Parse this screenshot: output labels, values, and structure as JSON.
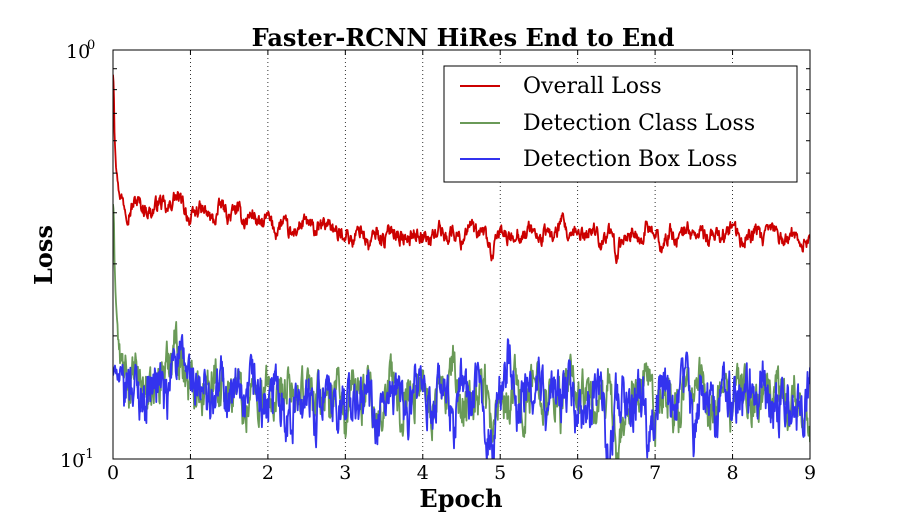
{
  "chart_data": {
    "type": "line",
    "title": "Faster-RCNN HiRes End to End",
    "xlabel": "Epoch",
    "ylabel": "Loss",
    "xlim": [
      0,
      9
    ],
    "ylim": [
      0.1,
      1.0
    ],
    "yscale": "log",
    "grid": "x-only dotted",
    "legend_position": "top-right",
    "x_ticks": [
      "0",
      "1",
      "2",
      "3",
      "4",
      "5",
      "6",
      "7",
      "8",
      "9"
    ],
    "y_ticks": [
      {
        "value": 1.0,
        "base": "10",
        "exp": "0"
      },
      {
        "value": 0.1,
        "base": "10",
        "exp": "-1"
      }
    ],
    "series": [
      {
        "name": "Overall Loss",
        "color": "#cc0000",
        "x": [
          0.0,
          0.01,
          0.02,
          0.04,
          0.07,
          0.1,
          0.15,
          0.2,
          0.3,
          0.4,
          0.5,
          0.6,
          0.7,
          0.8,
          0.9,
          1.0,
          1.1,
          1.2,
          1.3,
          1.4,
          1.5,
          1.6,
          1.7,
          1.8,
          1.9,
          2.0,
          2.1,
          2.2,
          2.3,
          2.4,
          2.5,
          2.6,
          2.7,
          2.8,
          2.9,
          3.0,
          3.1,
          3.2,
          3.3,
          3.4,
          3.5,
          3.6,
          3.7,
          3.8,
          3.9,
          4.0,
          4.1,
          4.2,
          4.3,
          4.4,
          4.5,
          4.6,
          4.7,
          4.8,
          4.9,
          5.0,
          5.1,
          5.2,
          5.3,
          5.4,
          5.5,
          5.6,
          5.7,
          5.8,
          5.9,
          6.0,
          6.1,
          6.2,
          6.3,
          6.4,
          6.5,
          6.6,
          6.7,
          6.8,
          6.9,
          7.0,
          7.1,
          7.2,
          7.3,
          7.4,
          7.5,
          7.6,
          7.7,
          7.8,
          7.9,
          8.0,
          8.1,
          8.2,
          8.3,
          8.4,
          8.5,
          8.6,
          8.7,
          8.8,
          8.9,
          9.0
        ],
        "values": [
          0.87,
          0.82,
          0.62,
          0.52,
          0.46,
          0.44,
          0.42,
          0.4,
          0.43,
          0.41,
          0.4,
          0.43,
          0.4,
          0.44,
          0.42,
          0.38,
          0.41,
          0.4,
          0.38,
          0.42,
          0.39,
          0.41,
          0.38,
          0.4,
          0.37,
          0.39,
          0.36,
          0.38,
          0.35,
          0.37,
          0.38,
          0.36,
          0.37,
          0.38,
          0.35,
          0.36,
          0.34,
          0.37,
          0.33,
          0.36,
          0.34,
          0.37,
          0.35,
          0.34,
          0.36,
          0.35,
          0.34,
          0.37,
          0.35,
          0.36,
          0.34,
          0.38,
          0.35,
          0.36,
          0.31,
          0.37,
          0.34,
          0.36,
          0.35,
          0.37,
          0.34,
          0.36,
          0.35,
          0.38,
          0.34,
          0.36,
          0.35,
          0.37,
          0.34,
          0.36,
          0.32,
          0.35,
          0.36,
          0.34,
          0.37,
          0.35,
          0.33,
          0.36,
          0.34,
          0.37,
          0.35,
          0.36,
          0.34,
          0.36,
          0.35,
          0.37,
          0.34,
          0.35,
          0.36,
          0.34,
          0.37,
          0.35,
          0.34,
          0.36,
          0.33,
          0.35
        ],
        "noise": 0.035
      },
      {
        "name": "Detection Class Loss",
        "color": "#6a9a58",
        "x": [
          0.0,
          0.01,
          0.02,
          0.04,
          0.07,
          0.1,
          0.15,
          0.2,
          0.3,
          0.4,
          0.5,
          0.6,
          0.7,
          0.8,
          0.9,
          1.0,
          1.1,
          1.2,
          1.3,
          1.4,
          1.5,
          1.6,
          1.7,
          1.8,
          1.9,
          2.0,
          2.1,
          2.2,
          2.3,
          2.4,
          2.5,
          2.6,
          2.7,
          2.8,
          2.9,
          3.0,
          3.1,
          3.2,
          3.3,
          3.4,
          3.5,
          3.6,
          3.7,
          3.8,
          3.9,
          4.0,
          4.1,
          4.2,
          4.3,
          4.4,
          4.5,
          4.6,
          4.7,
          4.8,
          4.9,
          5.0,
          5.1,
          5.2,
          5.3,
          5.4,
          5.5,
          5.6,
          5.7,
          5.8,
          5.9,
          6.0,
          6.1,
          6.2,
          6.3,
          6.4,
          6.5,
          6.6,
          6.7,
          6.8,
          6.9,
          7.0,
          7.1,
          7.2,
          7.3,
          7.4,
          7.5,
          7.6,
          7.7,
          7.8,
          7.9,
          8.0,
          8.1,
          8.2,
          8.3,
          8.4,
          8.5,
          8.6,
          8.7,
          8.8,
          8.9,
          9.0
        ],
        "values": [
          0.42,
          0.4,
          0.3,
          0.24,
          0.19,
          0.17,
          0.16,
          0.15,
          0.16,
          0.15,
          0.14,
          0.16,
          0.17,
          0.2,
          0.17,
          0.15,
          0.16,
          0.14,
          0.17,
          0.15,
          0.14,
          0.16,
          0.13,
          0.15,
          0.14,
          0.15,
          0.13,
          0.14,
          0.15,
          0.13,
          0.16,
          0.14,
          0.15,
          0.13,
          0.16,
          0.12,
          0.15,
          0.14,
          0.16,
          0.12,
          0.14,
          0.16,
          0.13,
          0.15,
          0.14,
          0.16,
          0.13,
          0.15,
          0.14,
          0.17,
          0.13,
          0.15,
          0.14,
          0.16,
          0.11,
          0.15,
          0.14,
          0.16,
          0.13,
          0.15,
          0.16,
          0.14,
          0.15,
          0.13,
          0.16,
          0.14,
          0.15,
          0.13,
          0.14,
          0.16,
          0.1,
          0.13,
          0.15,
          0.14,
          0.16,
          0.12,
          0.15,
          0.14,
          0.13,
          0.15,
          0.14,
          0.16,
          0.13,
          0.14,
          0.15,
          0.13,
          0.16,
          0.14,
          0.13,
          0.15,
          0.14,
          0.16,
          0.13,
          0.15,
          0.13,
          0.12
        ],
        "noise": 0.1
      },
      {
        "name": "Detection Box Loss",
        "color": "#3333ee",
        "x": [
          0.0,
          0.05,
          0.1,
          0.15,
          0.2,
          0.3,
          0.4,
          0.5,
          0.6,
          0.7,
          0.8,
          0.9,
          1.0,
          1.1,
          1.2,
          1.3,
          1.4,
          1.5,
          1.6,
          1.7,
          1.8,
          1.9,
          2.0,
          2.1,
          2.2,
          2.3,
          2.4,
          2.5,
          2.6,
          2.7,
          2.8,
          2.9,
          3.0,
          3.1,
          3.2,
          3.3,
          3.4,
          3.5,
          3.6,
          3.7,
          3.8,
          3.9,
          4.0,
          4.1,
          4.2,
          4.3,
          4.4,
          4.5,
          4.6,
          4.7,
          4.8,
          4.9,
          5.0,
          5.1,
          5.2,
          5.3,
          5.4,
          5.5,
          5.6,
          5.7,
          5.8,
          5.9,
          6.0,
          6.1,
          6.2,
          6.3,
          6.4,
          6.5,
          6.6,
          6.7,
          6.8,
          6.9,
          7.0,
          7.1,
          7.2,
          7.3,
          7.4,
          7.5,
          7.6,
          7.7,
          7.8,
          7.9,
          8.0,
          8.1,
          8.2,
          8.3,
          8.4,
          8.5,
          8.6,
          8.7,
          8.8,
          8.9,
          9.0
        ],
        "values": [
          0.16,
          0.17,
          0.15,
          0.14,
          0.16,
          0.15,
          0.14,
          0.15,
          0.16,
          0.13,
          0.19,
          0.17,
          0.16,
          0.14,
          0.15,
          0.13,
          0.16,
          0.14,
          0.15,
          0.12,
          0.16,
          0.14,
          0.13,
          0.15,
          0.14,
          0.12,
          0.15,
          0.14,
          0.13,
          0.15,
          0.14,
          0.12,
          0.15,
          0.13,
          0.14,
          0.15,
          0.11,
          0.14,
          0.13,
          0.16,
          0.12,
          0.15,
          0.14,
          0.13,
          0.15,
          0.14,
          0.12,
          0.16,
          0.14,
          0.15,
          0.13,
          0.1,
          0.15,
          0.18,
          0.13,
          0.15,
          0.14,
          0.16,
          0.13,
          0.15,
          0.14,
          0.15,
          0.13,
          0.12,
          0.14,
          0.15,
          0.1,
          0.14,
          0.15,
          0.13,
          0.16,
          0.12,
          0.14,
          0.15,
          0.13,
          0.14,
          0.16,
          0.12,
          0.15,
          0.14,
          0.13,
          0.16,
          0.14,
          0.13,
          0.15,
          0.14,
          0.16,
          0.13,
          0.14,
          0.15,
          0.13,
          0.14,
          0.15
        ],
        "noise": 0.11
      }
    ]
  }
}
